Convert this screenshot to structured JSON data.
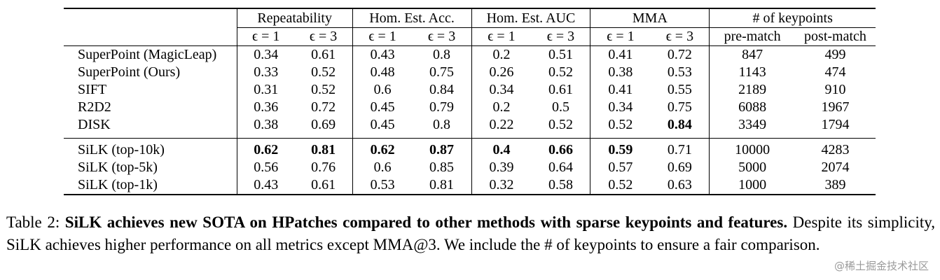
{
  "groups": [
    "Repeatability",
    "Hom. Est. Acc.",
    "Hom. Est. AUC",
    "MMA",
    "# of keypoints"
  ],
  "subheaders": [
    "ϵ = 1",
    "ϵ = 3",
    "ϵ = 1",
    "ϵ = 3",
    "ϵ = 1",
    "ϵ = 3",
    "ϵ = 1",
    "ϵ = 3",
    "pre-match",
    "post-match"
  ],
  "rows_a": [
    {
      "method": "SuperPoint (MagicLeap)",
      "values": [
        "0.34",
        "0.61",
        "0.43",
        "0.8",
        "0.2",
        "0.51",
        "0.41",
        "0.72",
        "847",
        "499"
      ]
    },
    {
      "method": "SuperPoint (Ours)",
      "values": [
        "0.33",
        "0.52",
        "0.48",
        "0.75",
        "0.26",
        "0.52",
        "0.38",
        "0.53",
        "1143",
        "474"
      ]
    },
    {
      "method": "SIFT",
      "values": [
        "0.31",
        "0.52",
        "0.6",
        "0.84",
        "0.34",
        "0.61",
        "0.41",
        "0.55",
        "2189",
        "910"
      ]
    },
    {
      "method": "R2D2",
      "values": [
        "0.36",
        "0.72",
        "0.45",
        "0.79",
        "0.2",
        "0.5",
        "0.34",
        "0.75",
        "6088",
        "1967"
      ]
    },
    {
      "method": "DISK",
      "values": [
        "0.38",
        "0.69",
        "0.45",
        "0.8",
        "0.22",
        "0.52",
        "0.52",
        "0.84",
        "3349",
        "1794"
      ]
    }
  ],
  "rows_b": [
    {
      "method": "SiLK (top-10k)",
      "values": [
        "0.62",
        "0.81",
        "0.62",
        "0.87",
        "0.4",
        "0.66",
        "0.59",
        "0.71",
        "10000",
        "4283"
      ]
    },
    {
      "method": "SiLK (top-5k)",
      "values": [
        "0.56",
        "0.76",
        "0.6",
        "0.85",
        "0.39",
        "0.64",
        "0.57",
        "0.69",
        "5000",
        "2074"
      ]
    },
    {
      "method": "SiLK (top-1k)",
      "values": [
        "0.43",
        "0.61",
        "0.53",
        "0.81",
        "0.32",
        "0.58",
        "0.52",
        "0.63",
        "1000",
        "389"
      ]
    }
  ],
  "caption": {
    "label": "Table 2:",
    "bold": "SiLK achieves new SOTA on HPatches compared to other methods with sparse keypoints and features.",
    "rest": "Despite its simplicity, SiLK achieves higher performance on all metrics except MMA@3. We include the # of keypoints to ensure a fair comparison."
  },
  "watermark": "@稀土掘金技术社区"
}
